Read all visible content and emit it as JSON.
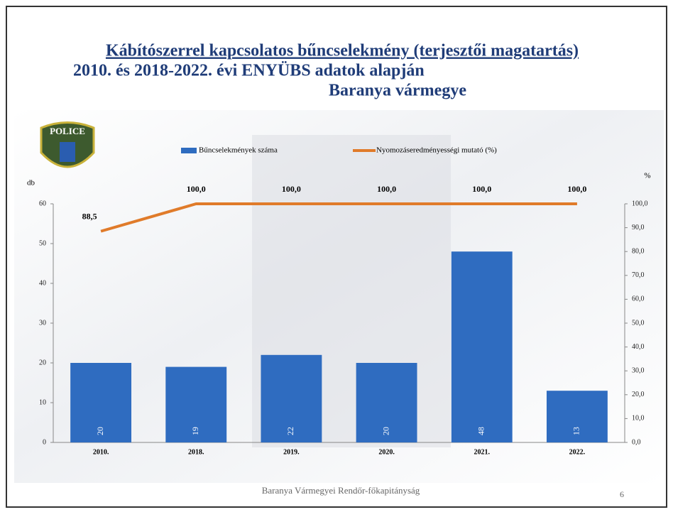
{
  "chart_data": {
    "type": "bar",
    "title": "Kábítószerrel kapcsolatos bűncselekmény (terjesztői magatartás)",
    "subtitle": [
      "2010. és 2018-2022. évi ENYÜBS adatok alapján",
      "Baranya vármegye"
    ],
    "logo_text": "POLICE",
    "y_label": "db",
    "y2_label": "%",
    "categories": [
      "2010.",
      "2018.",
      "2019.",
      "2020.",
      "2021.",
      "2022."
    ],
    "series": [
      {
        "name": "Bűncselekmények száma",
        "type": "bar",
        "color": "#2f6cc0",
        "values": [
          20,
          19,
          22,
          20,
          48,
          13
        ]
      },
      {
        "name": "Nyomozáseredményességi mutató (%)",
        "type": "line",
        "axis": "y2",
        "color": "#e07b2a",
        "values": [
          88.5,
          100,
          100,
          100,
          100,
          100
        ],
        "value_labels": [
          "88,5",
          "100,0",
          "100,0",
          "100,0",
          "100,0",
          "100,0"
        ]
      }
    ],
    "ylim": [
      0,
      60
    ],
    "yticks": [
      0,
      10,
      20,
      30,
      40,
      50,
      60
    ],
    "y2lim": [
      0,
      100
    ],
    "y2ticks": [
      {
        "value": 0,
        "label": "0,0"
      },
      {
        "value": 10,
        "label": "10,0"
      },
      {
        "value": 20,
        "label": "20,0"
      },
      {
        "value": 30,
        "label": "30,0"
      },
      {
        "value": 40,
        "label": "40,0"
      },
      {
        "value": 50,
        "label": "50,0"
      },
      {
        "value": 60,
        "label": "60,0"
      },
      {
        "value": 70,
        "label": "70,0"
      },
      {
        "value": 80,
        "label": "80,0"
      },
      {
        "value": 90,
        "label": "90,0"
      },
      {
        "value": 100,
        "label": "100,0"
      }
    ],
    "footer": "Baranya Vármegyei Rendőr-főkapitányság",
    "page_number": "6"
  }
}
